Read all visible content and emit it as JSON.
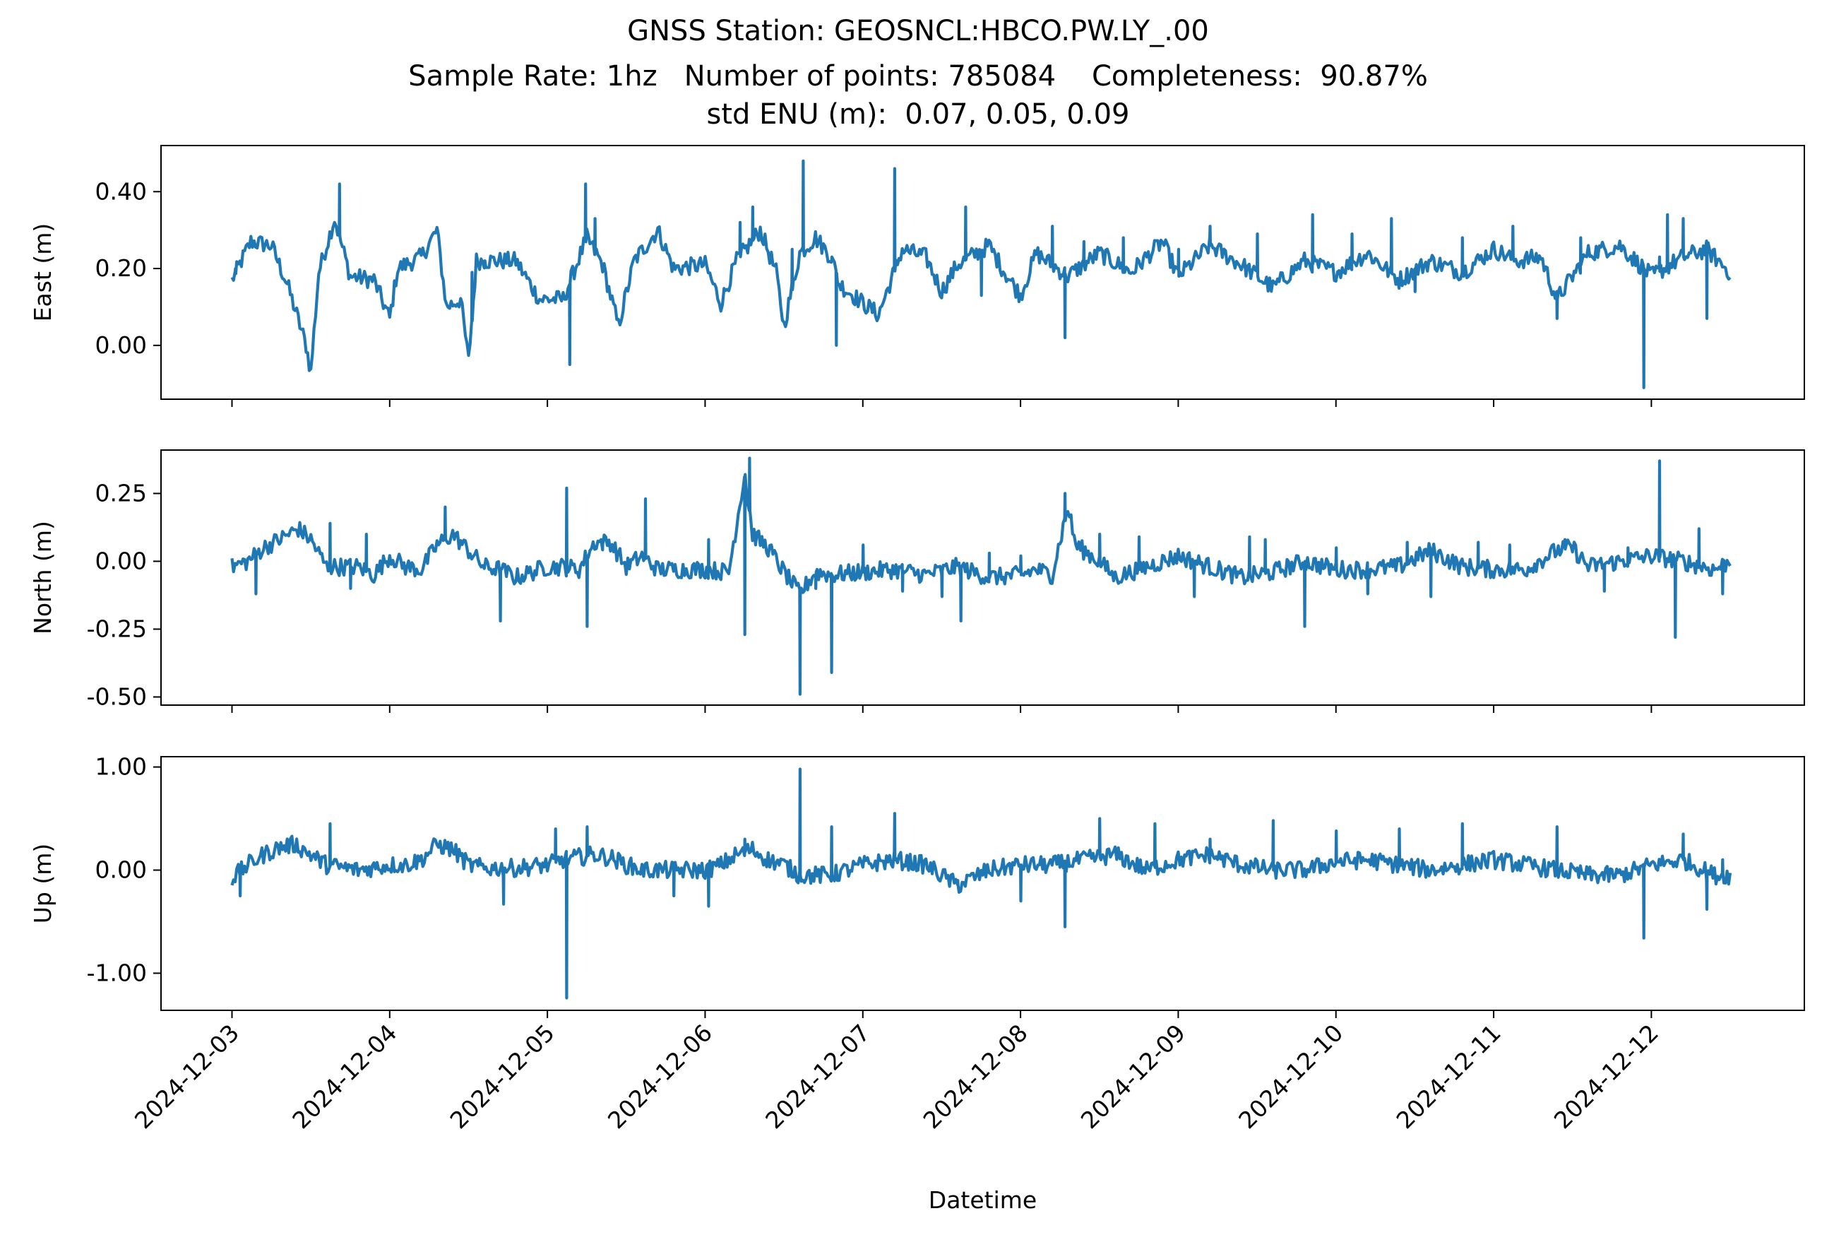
{
  "title_lines": [
    "GNSS Station: GEOSNCL:HBCO.PW.LY_.00",
    "Sample Rate: 1hz   Number of points: 785084    Completeness:  90.87%",
    "std ENU (m):  0.07, 0.05, 0.09"
  ],
  "chart_data": [
    {
      "type": "line",
      "ylabel": "East (m)",
      "ylim": [
        -0.14,
        0.52
      ],
      "yticks": [
        0.0,
        0.2,
        0.4
      ],
      "ytick_labels": [
        "0.00",
        "0.20",
        "0.40"
      ],
      "color": "#1f77b4",
      "baseline": [
        [
          0.0,
          0.17
        ],
        [
          0.12,
          0.27
        ],
        [
          0.25,
          0.26
        ],
        [
          0.35,
          0.16
        ],
        [
          0.47,
          0.0
        ],
        [
          0.5,
          -0.07
        ],
        [
          0.55,
          0.19
        ],
        [
          0.65,
          0.33
        ],
        [
          0.75,
          0.18
        ],
        [
          0.9,
          0.17
        ],
        [
          1.0,
          0.07
        ],
        [
          1.05,
          0.2
        ],
        [
          1.2,
          0.23
        ],
        [
          1.3,
          0.3
        ],
        [
          1.36,
          0.1
        ],
        [
          1.45,
          0.12
        ],
        [
          1.5,
          -0.04
        ],
        [
          1.55,
          0.22
        ],
        [
          1.8,
          0.22
        ],
        [
          1.95,
          0.12
        ],
        [
          2.1,
          0.12
        ],
        [
          2.25,
          0.28
        ],
        [
          2.35,
          0.21
        ],
        [
          2.45,
          0.05
        ],
        [
          2.55,
          0.22
        ],
        [
          2.7,
          0.3
        ],
        [
          2.8,
          0.2
        ],
        [
          3.0,
          0.21
        ],
        [
          3.1,
          0.11
        ],
        [
          3.2,
          0.22
        ],
        [
          3.35,
          0.3
        ],
        [
          3.45,
          0.19
        ],
        [
          3.5,
          0.05
        ],
        [
          3.6,
          0.24
        ],
        [
          3.7,
          0.28
        ],
        [
          3.8,
          0.23
        ],
        [
          3.85,
          0.16
        ],
        [
          4.0,
          0.11
        ],
        [
          4.1,
          0.08
        ],
        [
          4.25,
          0.25
        ],
        [
          4.4,
          0.23
        ],
        [
          4.5,
          0.14
        ],
        [
          4.6,
          0.21
        ],
        [
          4.8,
          0.26
        ],
        [
          4.9,
          0.19
        ],
        [
          5.0,
          0.13
        ],
        [
          5.1,
          0.24
        ],
        [
          5.3,
          0.18
        ],
        [
          5.5,
          0.24
        ],
        [
          5.7,
          0.19
        ],
        [
          5.9,
          0.27
        ],
        [
          6.0,
          0.18
        ],
        [
          6.2,
          0.26
        ],
        [
          6.4,
          0.21
        ],
        [
          6.6,
          0.15
        ],
        [
          6.8,
          0.22
        ],
        [
          7.0,
          0.19
        ],
        [
          7.2,
          0.24
        ],
        [
          7.4,
          0.17
        ],
        [
          7.6,
          0.22
        ],
        [
          7.8,
          0.19
        ],
        [
          8.0,
          0.25
        ],
        [
          8.15,
          0.22
        ],
        [
          8.3,
          0.23
        ],
        [
          8.4,
          0.12
        ],
        [
          8.6,
          0.24
        ],
        [
          8.8,
          0.26
        ],
        [
          9.0,
          0.18
        ],
        [
          9.2,
          0.23
        ],
        [
          9.35,
          0.25
        ],
        [
          9.5,
          0.19
        ]
      ],
      "spikes": [
        [
          0.02,
          0.2
        ],
        [
          0.68,
          0.42
        ],
        [
          1.52,
          0.19
        ],
        [
          1.6,
          0.22
        ],
        [
          2.14,
          -0.05
        ],
        [
          2.24,
          0.42
        ],
        [
          2.3,
          0.33
        ],
        [
          3.22,
          0.32
        ],
        [
          3.3,
          0.36
        ],
        [
          3.55,
          0.25
        ],
        [
          3.62,
          0.48
        ],
        [
          3.8,
          0.22
        ],
        [
          3.83,
          0.0
        ],
        [
          4.2,
          0.46
        ],
        [
          4.65,
          0.36
        ],
        [
          4.75,
          0.13
        ],
        [
          5.2,
          0.31
        ],
        [
          5.28,
          0.02
        ],
        [
          5.4,
          0.27
        ],
        [
          5.65,
          0.28
        ],
        [
          6.0,
          0.25
        ],
        [
          6.2,
          0.31
        ],
        [
          6.5,
          0.29
        ],
        [
          6.85,
          0.34
        ],
        [
          7.1,
          0.29
        ],
        [
          7.35,
          0.33
        ],
        [
          7.5,
          0.14
        ],
        [
          7.8,
          0.28
        ],
        [
          8.12,
          0.31
        ],
        [
          8.4,
          0.07
        ],
        [
          8.55,
          0.28
        ],
        [
          8.95,
          -0.11
        ],
        [
          9.05,
          0.23
        ],
        [
          9.1,
          0.34
        ],
        [
          9.2,
          0.33
        ],
        [
          9.35,
          0.07
        ]
      ]
    },
    {
      "type": "line",
      "ylabel": "North (m)",
      "ylim": [
        -0.53,
        0.41
      ],
      "yticks": [
        -0.5,
        -0.25,
        0.0,
        0.25
      ],
      "ytick_labels": [
        "-0.50",
        "-0.25",
        "0.00",
        "0.25"
      ],
      "color": "#1f77b4",
      "baseline": [
        [
          0.0,
          -0.02
        ],
        [
          0.1,
          0.0
        ],
        [
          0.2,
          0.05
        ],
        [
          0.3,
          0.08
        ],
        [
          0.42,
          0.12
        ],
        [
          0.5,
          0.08
        ],
        [
          0.6,
          -0.02
        ],
        [
          0.8,
          -0.02
        ],
        [
          0.9,
          -0.05
        ],
        [
          1.0,
          0.02
        ],
        [
          1.1,
          -0.02
        ],
        [
          1.2,
          -0.03
        ],
        [
          1.3,
          0.06
        ],
        [
          1.4,
          0.1
        ],
        [
          1.5,
          0.04
        ],
        [
          1.6,
          -0.02
        ],
        [
          1.7,
          -0.03
        ],
        [
          1.8,
          -0.06
        ],
        [
          1.9,
          -0.04
        ],
        [
          2.0,
          -0.02
        ],
        [
          2.1,
          -0.02
        ],
        [
          2.2,
          -0.03
        ],
        [
          2.3,
          0.07
        ],
        [
          2.4,
          0.07
        ],
        [
          2.5,
          -0.02
        ],
        [
          2.6,
          0.02
        ],
        [
          2.7,
          -0.03
        ],
        [
          2.8,
          -0.03
        ],
        [
          3.0,
          -0.03
        ],
        [
          3.15,
          -0.04
        ],
        [
          3.25,
          0.32
        ],
        [
          3.3,
          0.1
        ],
        [
          3.4,
          0.05
        ],
        [
          3.5,
          -0.04
        ],
        [
          3.6,
          -0.12
        ],
        [
          3.7,
          -0.04
        ],
        [
          3.8,
          -0.05
        ],
        [
          4.0,
          -0.04
        ],
        [
          4.2,
          -0.03
        ],
        [
          4.4,
          -0.05
        ],
        [
          4.6,
          -0.02
        ],
        [
          4.8,
          -0.06
        ],
        [
          5.0,
          -0.05
        ],
        [
          5.1,
          -0.03
        ],
        [
          5.2,
          -0.05
        ],
        [
          5.3,
          0.2
        ],
        [
          5.35,
          0.06
        ],
        [
          5.5,
          0.0
        ],
        [
          5.6,
          -0.06
        ],
        [
          5.8,
          -0.02
        ],
        [
          6.0,
          0.02
        ],
        [
          6.2,
          -0.02
        ],
        [
          6.4,
          -0.06
        ],
        [
          6.6,
          -0.04
        ],
        [
          6.8,
          0.0
        ],
        [
          7.0,
          -0.03
        ],
        [
          7.2,
          -0.03
        ],
        [
          7.4,
          -0.02
        ],
        [
          7.6,
          0.04
        ],
        [
          7.8,
          -0.02
        ],
        [
          8.0,
          -0.03
        ],
        [
          8.2,
          -0.03
        ],
        [
          8.4,
          0.04
        ],
        [
          8.5,
          0.05
        ],
        [
          8.6,
          -0.02
        ],
        [
          8.8,
          0.0
        ],
        [
          9.0,
          0.02
        ],
        [
          9.2,
          0.0
        ],
        [
          9.4,
          -0.03
        ],
        [
          9.5,
          0.0
        ]
      ],
      "spikes": [
        [
          0.15,
          -0.12
        ],
        [
          0.62,
          0.14
        ],
        [
          0.75,
          -0.1
        ],
        [
          0.85,
          0.1
        ],
        [
          1.35,
          0.2
        ],
        [
          1.7,
          -0.22
        ],
        [
          2.12,
          0.27
        ],
        [
          2.25,
          -0.24
        ],
        [
          2.35,
          0.08
        ],
        [
          2.62,
          0.23
        ],
        [
          3.02,
          0.08
        ],
        [
          3.25,
          -0.27
        ],
        [
          3.28,
          0.38
        ],
        [
          3.6,
          -0.49
        ],
        [
          3.7,
          -0.1
        ],
        [
          3.8,
          -0.41
        ],
        [
          4.0,
          0.06
        ],
        [
          4.25,
          -0.11
        ],
        [
          4.5,
          -0.13
        ],
        [
          4.62,
          -0.22
        ],
        [
          4.8,
          0.03
        ],
        [
          5.0,
          0.02
        ],
        [
          5.28,
          0.25
        ],
        [
          5.5,
          0.1
        ],
        [
          5.75,
          0.09
        ],
        [
          6.1,
          -0.13
        ],
        [
          6.45,
          0.09
        ],
        [
          6.55,
          0.08
        ],
        [
          6.8,
          -0.24
        ],
        [
          7.0,
          0.05
        ],
        [
          7.2,
          -0.12
        ],
        [
          7.45,
          0.07
        ],
        [
          7.6,
          -0.13
        ],
        [
          7.9,
          0.07
        ],
        [
          8.1,
          0.06
        ],
        [
          8.45,
          0.08
        ],
        [
          8.7,
          -0.11
        ],
        [
          8.85,
          0.05
        ],
        [
          9.05,
          0.37
        ],
        [
          9.15,
          -0.28
        ],
        [
          9.3,
          0.12
        ],
        [
          9.45,
          -0.12
        ]
      ]
    },
    {
      "type": "line",
      "ylabel": "Up (m)",
      "ylim": [
        -1.36,
        1.1
      ],
      "yticks": [
        -1.0,
        0.0,
        1.0
      ],
      "ytick_labels": [
        "-1.00",
        "0.00",
        "1.00"
      ],
      "color": "#1f77b4",
      "baseline": [
        [
          0.0,
          -0.08
        ],
        [
          0.1,
          0.05
        ],
        [
          0.2,
          0.15
        ],
        [
          0.3,
          0.22
        ],
        [
          0.4,
          0.25
        ],
        [
          0.5,
          0.15
        ],
        [
          0.6,
          0.05
        ],
        [
          0.8,
          0.0
        ],
        [
          1.0,
          0.05
        ],
        [
          1.1,
          0.05
        ],
        [
          1.2,
          0.1
        ],
        [
          1.3,
          0.25
        ],
        [
          1.4,
          0.2
        ],
        [
          1.5,
          0.05
        ],
        [
          1.6,
          0.02
        ],
        [
          1.8,
          0.02
        ],
        [
          2.0,
          0.05
        ],
        [
          2.1,
          0.1
        ],
        [
          2.3,
          0.15
        ],
        [
          2.4,
          0.12
        ],
        [
          2.5,
          0.05
        ],
        [
          2.6,
          0.0
        ],
        [
          2.8,
          0.0
        ],
        [
          3.0,
          0.0
        ],
        [
          3.1,
          0.05
        ],
        [
          3.2,
          0.15
        ],
        [
          3.3,
          0.2
        ],
        [
          3.4,
          0.1
        ],
        [
          3.5,
          0.05
        ],
        [
          3.6,
          -0.05
        ],
        [
          3.7,
          -0.05
        ],
        [
          3.8,
          -0.05
        ],
        [
          4.0,
          0.05
        ],
        [
          4.2,
          0.1
        ],
        [
          4.4,
          0.05
        ],
        [
          4.5,
          -0.05
        ],
        [
          4.6,
          -0.15
        ],
        [
          4.8,
          0.0
        ],
        [
          5.0,
          0.05
        ],
        [
          5.2,
          0.05
        ],
        [
          5.4,
          0.1
        ],
        [
          5.6,
          0.15
        ],
        [
          5.8,
          0.0
        ],
        [
          6.0,
          0.1
        ],
        [
          6.2,
          0.15
        ],
        [
          6.4,
          0.05
        ],
        [
          6.6,
          0.0
        ],
        [
          6.8,
          0.0
        ],
        [
          7.0,
          0.08
        ],
        [
          7.2,
          0.1
        ],
        [
          7.4,
          0.05
        ],
        [
          7.6,
          0.0
        ],
        [
          7.8,
          0.05
        ],
        [
          8.0,
          0.1
        ],
        [
          8.2,
          0.05
        ],
        [
          8.4,
          0.0
        ],
        [
          8.6,
          -0.05
        ],
        [
          8.8,
          -0.05
        ],
        [
          9.0,
          0.05
        ],
        [
          9.2,
          0.1
        ],
        [
          9.4,
          -0.05
        ],
        [
          9.5,
          -0.05
        ]
      ],
      "spikes": [
        [
          0.05,
          -0.25
        ],
        [
          0.62,
          0.45
        ],
        [
          1.72,
          -0.33
        ],
        [
          2.05,
          0.4
        ],
        [
          2.12,
          -1.24
        ],
        [
          2.25,
          0.42
        ],
        [
          2.8,
          -0.25
        ],
        [
          3.02,
          -0.35
        ],
        [
          3.25,
          0.3
        ],
        [
          3.6,
          0.98
        ],
        [
          3.8,
          0.42
        ],
        [
          4.2,
          0.55
        ],
        [
          4.6,
          -0.1
        ],
        [
          5.0,
          -0.3
        ],
        [
          5.28,
          -0.55
        ],
        [
          5.5,
          0.5
        ],
        [
          5.85,
          0.45
        ],
        [
          6.2,
          0.3
        ],
        [
          6.6,
          0.48
        ],
        [
          7.0,
          0.38
        ],
        [
          7.4,
          0.4
        ],
        [
          7.8,
          0.45
        ],
        [
          8.4,
          0.42
        ],
        [
          8.95,
          -0.66
        ],
        [
          9.2,
          0.35
        ],
        [
          9.35,
          -0.38
        ],
        [
          9.45,
          0.1
        ]
      ]
    }
  ],
  "x_axis": {
    "xlabel": "Datetime",
    "xlim": [
      -0.45,
      9.97
    ],
    "tick_labels": [
      "2024-12-03",
      "2024-12-04",
      "2024-12-05",
      "2024-12-06",
      "2024-12-07",
      "2024-12-08",
      "2024-12-09",
      "2024-12-10",
      "2024-12-11",
      "2024-12-12"
    ]
  }
}
